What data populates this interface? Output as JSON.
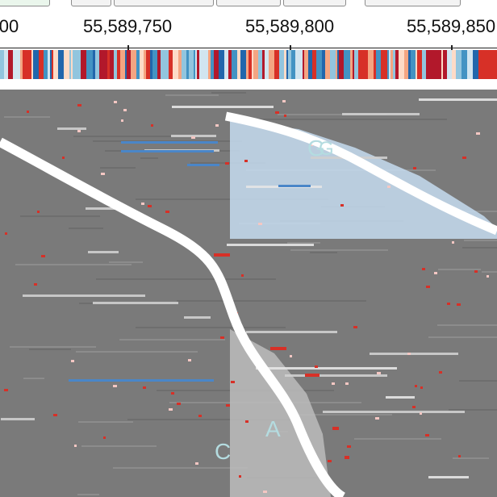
{
  "window": {
    "top_buttons": [
      "",
      "",
      "",
      "",
      "",
      ""
    ]
  },
  "ruler": {
    "ticks": [
      {
        "label": "00"
      },
      {
        "label": "55,589,750"
      },
      {
        "label": "55,589,800"
      },
      {
        "label": "55,589,850"
      }
    ]
  },
  "reads": {
    "mismatch_letters": [
      "G",
      "G",
      "A",
      "C"
    ]
  },
  "colors": {
    "read_gray": "#7a7a7a",
    "read_light": "#bcbcbc",
    "read_blue": "#4a86c8",
    "highlight_blue": "#c5dcf0",
    "mismatch_red": "#d73027",
    "pink": "#f4c7c3",
    "text": "#111111",
    "letter": "#b4dce0"
  }
}
